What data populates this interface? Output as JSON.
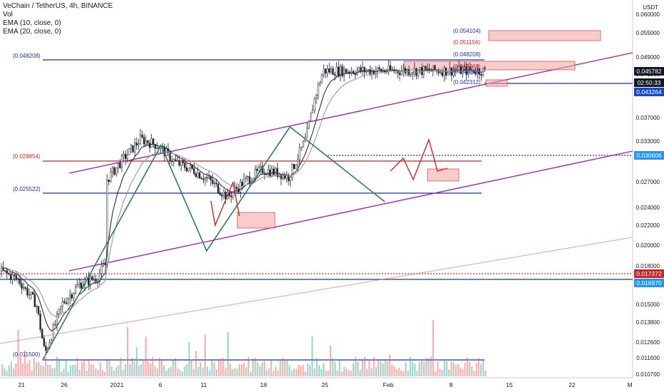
{
  "legend": {
    "symbol": "VeChain / TetherUS, 4h, BINANCE",
    "vol": "Vol",
    "ema10": "EMA (10, close, 0)",
    "ema20": "EMA (20, close, 0)"
  },
  "axis": {
    "currency": "USDT",
    "y_ticks": [
      "0.060000",
      "0.055000",
      "0.049000",
      "0.041000",
      "0.037000",
      "0.033000",
      "0.029000",
      "0.027000",
      "0.024000",
      "0.022000",
      "0.020000",
      "0.018000",
      "0.015000",
      "0.013800",
      "0.012600",
      "0.011600",
      "0.010700"
    ],
    "x_ticks": [
      "21",
      "26",
      "2021",
      "6",
      "11",
      "18",
      "25",
      "Feb",
      "8",
      "15",
      "22",
      "M"
    ]
  },
  "price_labels": [
    {
      "text": "0.045782",
      "bg": "#131722",
      "fg": "#ffffff"
    },
    {
      "text": "02:50:33",
      "bg": "#131722",
      "fg": "#ffffff"
    },
    {
      "text": "0.043264",
      "bg": "#1848cc",
      "fg": "#ffffff"
    },
    {
      "text": "0.030606",
      "bg": "#2196f3",
      "fg": "#ffffff"
    },
    {
      "text": "0.017372",
      "bg": "#c62828",
      "fg": "#ffffff"
    },
    {
      "text": "0.016970",
      "bg": "#2196f3",
      "fg": "#ffffff"
    }
  ],
  "annotations": [
    {
      "text": "(0.054104)",
      "color": "#1a2fb0"
    },
    {
      "text": "(0.051156)",
      "color": "#c62828"
    },
    {
      "text": "(0.048208)",
      "color": "#1a2fb0"
    },
    {
      "text": "(0.045260)",
      "color": "#c62828"
    },
    {
      "text": "(0.044564)",
      "color": "#1a2fb0"
    },
    {
      "text": "(0.042312)",
      "color": "#1a2fb0"
    },
    {
      "text": "(0.048208)",
      "color": "#1a2fb0"
    },
    {
      "text": "(0.029854)",
      "color": "#c62828"
    },
    {
      "text": "(0.025522)",
      "color": "#1a2fb0"
    },
    {
      "text": "(0.011500)",
      "color": "#1a2fb0"
    }
  ],
  "colors": {
    "up": "#26a69a",
    "down": "#ef5350",
    "candle": "#1e222d",
    "channel": "#9c27b0",
    "pattern": "#2e7d5b",
    "support_blue": "#1a2fb0",
    "resistance_red": "#c62828",
    "zone": "#f4a3a3",
    "trend": "#e57373"
  },
  "chart_data": {
    "type": "candlestick",
    "symbol": "VeChain / TetherUS",
    "interval": "4h",
    "exchange": "BINANCE",
    "ylabel": "USDT",
    "ylim": [
      0.0107,
      0.06
    ],
    "x_range": [
      "Dec 18",
      "Feb 28"
    ],
    "scale": "log",
    "series": [
      {
        "name": "Vol"
      },
      {
        "name": "EMA (10, close, 0)"
      },
      {
        "name": "EMA (20, close, 0)"
      }
    ],
    "horizontal_levels": [
      0.048208,
      0.029854,
      0.025522,
      0.0115,
      0.017372,
      0.01697,
      0.043264,
      0.030606
    ],
    "close_path": [
      [
        "Dec 18",
        0.0175
      ],
      [
        "Dec 20",
        0.0168
      ],
      [
        "Dec 22",
        0.015
      ],
      [
        "Dec 23",
        0.0118
      ],
      [
        "Dec 25",
        0.015
      ],
      [
        "Dec 27",
        0.0165
      ],
      [
        "Dec 29",
        0.017
      ],
      [
        "Dec 30",
        0.0182
      ],
      [
        "Jan 1",
        0.019
      ],
      [
        "Jan 3",
        0.024
      ],
      [
        "Jan 5",
        0.0285
      ],
      [
        "Jan 7",
        0.027
      ],
      [
        "Jan 9",
        0.0255
      ],
      [
        "Jan 11",
        0.019
      ],
      [
        "Jan 13",
        0.023
      ],
      [
        "Jan 15",
        0.0255
      ],
      [
        "Jan 17",
        0.027
      ],
      [
        "Jan 19",
        0.03
      ],
      [
        "Jan 21",
        0.033
      ],
      [
        "Jan 23",
        0.032
      ],
      [
        "Jan 25",
        0.0295
      ],
      [
        "Jan 27",
        0.0285
      ],
      [
        "Jan 29",
        0.027
      ],
      [
        "Jan 31",
        0.025
      ],
      [
        "Feb 2",
        0.027
      ],
      [
        "Feb 4",
        0.0285
      ],
      [
        "Feb 6",
        0.028
      ],
      [
        "Feb 7",
        0.0275
      ],
      [
        "Feb 8",
        0.03
      ],
      [
        "Feb 9",
        0.033
      ],
      [
        "Feb 10",
        0.04
      ],
      [
        "Feb 11",
        0.0458
      ]
    ]
  }
}
